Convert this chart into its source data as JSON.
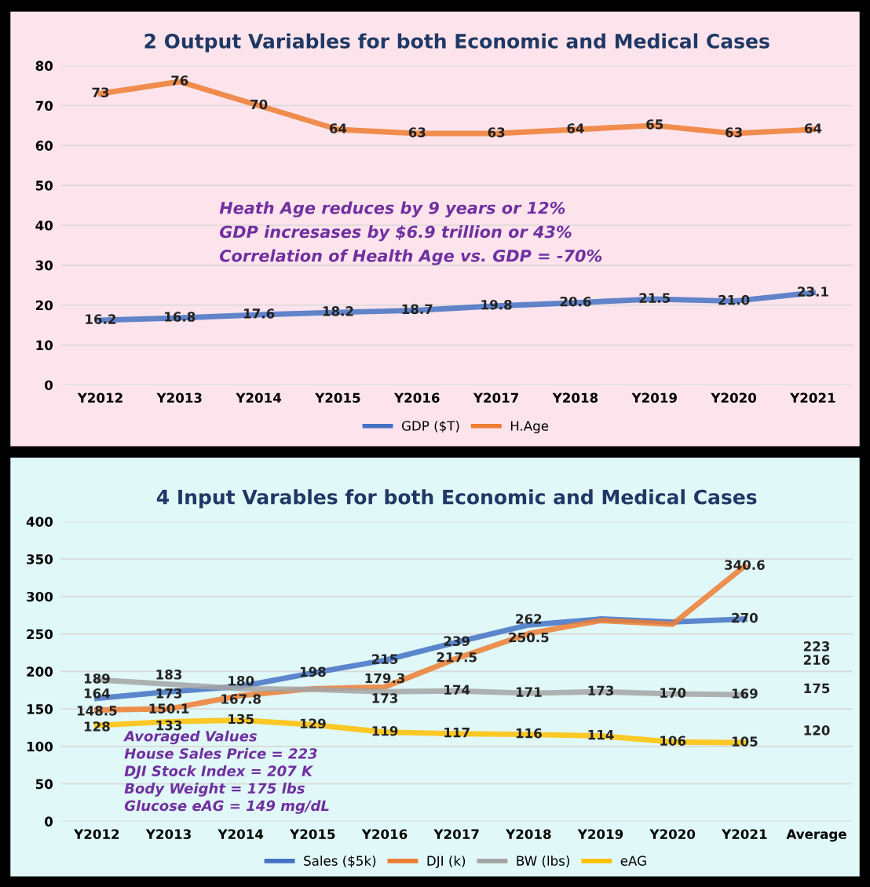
{
  "chart_data": [
    {
      "type": "line",
      "title": "2 Output Variables for both Economic and Medical Cases",
      "categories": [
        "Y2012",
        "Y2013",
        "Y2014",
        "Y2015",
        "Y2016",
        "Y2017",
        "Y2018",
        "Y2019",
        "Y2020",
        "Y2021"
      ],
      "series": [
        {
          "name": "GDP ($T)",
          "color": "#4472c4",
          "values": [
            16.2,
            16.8,
            17.6,
            18.2,
            18.7,
            19.8,
            20.6,
            21.5,
            21.0,
            23.1
          ],
          "value_labels": [
            "16.2",
            "16.8",
            "17.6",
            "18.2",
            "18.7",
            "19.8",
            "20.6",
            "21.5",
            "21.0",
            "23.1"
          ]
        },
        {
          "name": "H.Age",
          "color": "#ed7d31",
          "values": [
            73,
            76,
            70,
            64,
            63,
            63,
            64,
            65,
            63,
            64
          ]
        }
      ],
      "ylim": [
        0,
        80
      ],
      "yticks": [
        0,
        10,
        20,
        30,
        40,
        50,
        60,
        70,
        80
      ],
      "grid": "y",
      "legend": "bottom",
      "data_labels": true,
      "marker": "none",
      "annotations": [
        "Heath Age reduces by 9 years or 12%",
        "GDP incresases by $6.9 trillion or 43%",
        "Correlation of Health Age vs. GDP = -70%"
      ]
    },
    {
      "type": "line",
      "title": "4 Input Varables for both Economic and Medical Cases",
      "categories": [
        "Y2012",
        "Y2013",
        "Y2014",
        "Y2015",
        "Y2016",
        "Y2017",
        "Y2018",
        "Y2019",
        "Y2020",
        "Y2021",
        "Average"
      ],
      "series": [
        {
          "name": "Sales ($5k)",
          "color": "#4472c4",
          "values": [
            164,
            173,
            180,
            198,
            215,
            239,
            262,
            270,
            266,
            270,
            null
          ],
          "value_labels": [
            "164",
            "173",
            "180",
            "198",
            "215",
            "239",
            "262",
            null,
            null,
            "270",
            null
          ]
        },
        {
          "name": "DJI (k)",
          "color": "#ed7d31",
          "values": [
            148.5,
            150.1,
            167.8,
            177,
            179.3,
            217.5,
            250.5,
            268,
            263,
            340.6,
            null
          ],
          "value_labels": [
            "148.5",
            "150.1",
            "167.8",
            null,
            "179.3",
            "217.5",
            "250.5",
            null,
            null,
            "340.6",
            null
          ]
        },
        {
          "name": "BW (lbs)",
          "color": "#a5a5a5",
          "values": [
            189,
            183,
            177,
            176,
            173,
            174,
            171,
            173,
            170,
            169,
            null
          ],
          "value_labels": [
            "189",
            "183",
            null,
            null,
            "173",
            "174",
            "171",
            "173",
            "170",
            "169",
            null
          ]
        },
        {
          "name": "eAG",
          "color": "#ffc000",
          "values": [
            128,
            133,
            135,
            129,
            119,
            117,
            116,
            114,
            106,
            105,
            null
          ],
          "value_labels": [
            "128",
            "133",
            "135",
            "129",
            "119",
            "117",
            "116",
            "114",
            "106",
            "105",
            null
          ]
        }
      ],
      "ylim": [
        0,
        400
      ],
      "yticks": [
        0,
        50,
        100,
        150,
        200,
        250,
        300,
        350,
        400
      ],
      "grid": "y",
      "legend": "bottom",
      "data_labels": true,
      "marker": "none",
      "annotations": [
        "223",
        "216",
        "175",
        "120",
        "Avoraged Values",
        "House Sales Price = 223",
        "DJI Stock Index = 207 K",
        "Body Weight = 175 lbs",
        "Glucose eAG = 149 mg/dL"
      ]
    }
  ]
}
